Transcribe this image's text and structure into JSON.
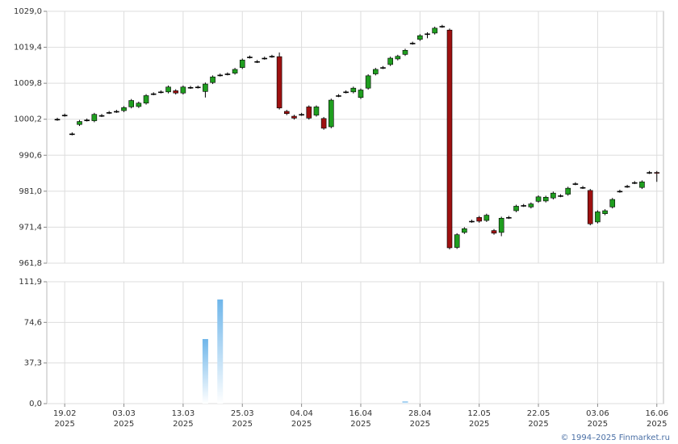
{
  "chart_data": [
    {
      "type": "candlestick",
      "categories": [
        null,
        "19.02",
        null,
        null,
        null,
        null,
        null,
        null,
        null,
        "03.03",
        null,
        null,
        null,
        null,
        null,
        null,
        null,
        "13.03",
        null,
        null,
        null,
        null,
        null,
        null,
        null,
        "25.03",
        null,
        null,
        null,
        null,
        null,
        null,
        null,
        "04.04",
        null,
        null,
        null,
        null,
        null,
        null,
        null,
        "16.04",
        null,
        null,
        null,
        null,
        null,
        null,
        null,
        "28.04",
        null,
        null,
        null,
        null,
        null,
        null,
        null,
        "12.05",
        null,
        null,
        null,
        null,
        null,
        null,
        null,
        "22.05",
        null,
        null,
        null,
        null,
        null,
        null,
        null,
        "03.06",
        null,
        null,
        null,
        null,
        null,
        null,
        null,
        "16.06"
      ],
      "x_year_label": "2025",
      "open": [
        1000.2,
        1001.3,
        996.3,
        998.8,
        1000.0,
        999.8,
        1001.2,
        1002.0,
        1002.3,
        1002.5,
        1003.5,
        1003.6,
        1004.5,
        1007.0,
        1007.5,
        1007.5,
        1007.8,
        1007.2,
        1008.7,
        1008.8,
        1007.6,
        1010.0,
        1012.0,
        1012.3,
        1012.5,
        1014.0,
        1016.8,
        1015.6,
        1016.5,
        1017.0,
        1016.9,
        1002.3,
        1001.0,
        1001.5,
        1003.5,
        1001.3,
        1000.4,
        998.2,
        1006.5,
        1007.5,
        1007.5,
        1006.0,
        1008.5,
        1012.3,
        1014.0,
        1014.8,
        1016.3,
        1017.5,
        1020.5,
        1021.5,
        1023.0,
        1023.2,
        1025.0,
        1024.0,
        966.0,
        970.0,
        973.0,
        974.0,
        973.2,
        970.5,
        970.0,
        974.0,
        975.8,
        977.2,
        976.8,
        978.3,
        978.4,
        979.2,
        979.8,
        980.2,
        983.0,
        982.0,
        981.2,
        972.8,
        975.0,
        976.8,
        981.0,
        982.3,
        983.3,
        982.0,
        986.0,
        986.0
      ],
      "high": [
        1000.6,
        1001.7,
        996.7,
        1000.0,
        1000.4,
        1001.9,
        1001.6,
        1002.4,
        1002.7,
        1003.7,
        1005.6,
        1004.9,
        1006.9,
        1007.4,
        1007.9,
        1009.2,
        1008.2,
        1009.2,
        1009.1,
        1009.2,
        1010.0,
        1011.9,
        1012.4,
        1012.7,
        1013.9,
        1016.4,
        1017.2,
        1016.0,
        1016.9,
        1017.4,
        1018.0,
        1002.7,
        1001.4,
        1001.9,
        1003.9,
        1003.9,
        1000.8,
        1005.7,
        1006.9,
        1007.9,
        1008.9,
        1008.4,
        1012.2,
        1013.9,
        1014.4,
        1016.9,
        1017.4,
        1019.0,
        1020.9,
        1022.9,
        1023.4,
        1024.9,
        1025.4,
        1024.4,
        969.8,
        971.4,
        973.4,
        974.4,
        975.0,
        970.9,
        974.2,
        974.4,
        977.4,
        977.6,
        978.0,
        979.9,
        979.8,
        980.9,
        980.2,
        982.2,
        983.4,
        982.4,
        981.6,
        975.9,
        976.2,
        979.2,
        981.4,
        982.7,
        983.7,
        983.9,
        986.4,
        986.4
      ],
      "low": [
        999.8,
        1000.9,
        995.9,
        998.4,
        999.6,
        999.4,
        1000.8,
        1001.6,
        1001.9,
        1002.1,
        1003.1,
        1003.2,
        1004.1,
        1006.6,
        1007.1,
        1007.1,
        1006.8,
        1006.8,
        1008.3,
        1008.4,
        1006.0,
        1009.6,
        1011.6,
        1011.9,
        1012.1,
        1013.6,
        1016.4,
        1015.2,
        1016.1,
        1016.6,
        1002.8,
        1001.3,
        1000.1,
        1001.1,
        1000.1,
        1000.9,
        997.4,
        997.8,
        1006.1,
        1007.1,
        1007.1,
        1005.6,
        1008.1,
        1011.9,
        1013.6,
        1014.4,
        1015.9,
        1017.1,
        1020.1,
        1021.1,
        1021.8,
        1022.8,
        1024.6,
        965.5,
        965.6,
        969.6,
        972.6,
        972.6,
        972.8,
        969.4,
        969.0,
        973.6,
        975.4,
        976.8,
        976.4,
        977.9,
        978.0,
        978.8,
        979.4,
        979.8,
        982.6,
        981.6,
        971.9,
        972.4,
        974.6,
        976.4,
        980.6,
        981.9,
        982.9,
        981.6,
        985.6,
        983.5
      ],
      "close": [
        1000.2,
        1001.3,
        996.3,
        999.6,
        1000.0,
        1001.5,
        1001.2,
        1002.0,
        1002.3,
        1003.3,
        1005.2,
        1004.5,
        1006.5,
        1007.0,
        1007.5,
        1008.8,
        1007.2,
        1008.8,
        1008.7,
        1008.8,
        1009.6,
        1011.5,
        1012.0,
        1012.3,
        1013.5,
        1016.0,
        1016.8,
        1015.6,
        1016.5,
        1017.0,
        1003.2,
        1001.7,
        1000.5,
        1001.5,
        1000.5,
        1003.5,
        997.8,
        1005.3,
        1006.5,
        1007.5,
        1008.5,
        1008.0,
        1011.8,
        1013.5,
        1014.0,
        1016.5,
        1017.0,
        1018.6,
        1020.5,
        1022.5,
        1023.0,
        1024.5,
        1025.0,
        965.9,
        969.4,
        971.0,
        973.0,
        973.0,
        974.6,
        969.8,
        973.8,
        974.0,
        977.0,
        977.2,
        977.6,
        979.5,
        979.4,
        980.5,
        979.8,
        981.8,
        983.0,
        982.0,
        972.3,
        975.5,
        975.8,
        978.8,
        981.0,
        982.3,
        983.3,
        983.5,
        986.0,
        985.8
      ],
      "up_color": "#1f9e1f",
      "down_color": "#9e1010",
      "ylim": [
        961.8,
        1029.0
      ],
      "yticks": [
        {
          "value": 961.8,
          "label": "961,8"
        },
        {
          "value": 971.4,
          "label": "971,4"
        },
        {
          "value": 981.0,
          "label": "981,0"
        },
        {
          "value": 990.6,
          "label": "990,6"
        },
        {
          "value": 1000.2,
          "label": "1000,2"
        },
        {
          "value": 1009.8,
          "label": "1009,8"
        },
        {
          "value": 1019.4,
          "label": "1019,4"
        },
        {
          "value": 1029.0,
          "label": "1029,0"
        }
      ],
      "grid": true
    },
    {
      "type": "bar",
      "values": [
        0,
        0,
        0,
        0,
        0,
        0,
        0,
        0,
        0,
        0,
        0,
        0,
        0,
        0,
        0,
        0,
        0,
        0,
        0,
        0,
        59.3,
        0,
        95.6,
        0,
        0,
        0,
        0,
        0,
        0,
        0,
        0,
        0,
        0,
        0,
        0,
        0,
        0,
        0,
        0,
        0,
        0,
        0,
        0,
        0,
        0,
        0,
        0,
        2.0,
        0,
        0,
        0,
        0,
        0,
        0,
        0,
        0,
        0,
        0,
        0,
        0,
        0,
        0,
        0,
        0,
        0,
        0,
        0,
        0,
        0,
        0,
        0,
        0,
        0,
        0,
        0,
        0,
        0,
        0,
        0,
        0,
        0,
        0
      ],
      "color": "#6fb6ea",
      "ylim": [
        0,
        111.9
      ],
      "yticks": [
        {
          "value": 0,
          "label": "0,0"
        },
        {
          "value": 37.3,
          "label": "37,3"
        },
        {
          "value": 74.6,
          "label": "74,6"
        },
        {
          "value": 111.9,
          "label": "111,9"
        }
      ],
      "grid": true
    }
  ],
  "copyright": "© 1994–2025 Finmarket.ru"
}
